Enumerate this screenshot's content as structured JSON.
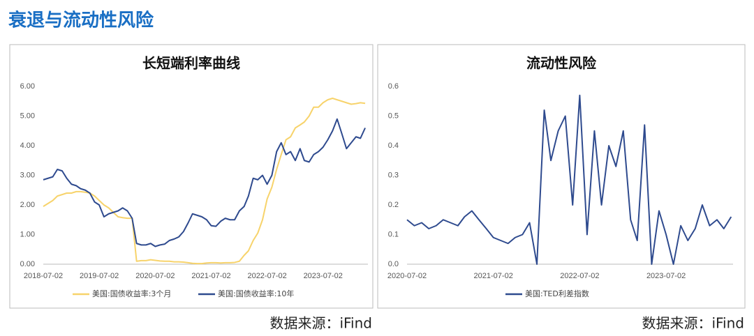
{
  "header": {
    "title": "衰退与流动性风险"
  },
  "notes": [
    "数据来源：iFind",
    "数据来源：iFind"
  ],
  "chart_data": [
    {
      "type": "line",
      "title": "长短端利率曲线",
      "x": [
        "2018-07-02",
        "2018-08-02",
        "2018-09-02",
        "2018-10-02",
        "2018-11-02",
        "2018-12-02",
        "2019-01-02",
        "2019-02-02",
        "2019-03-02",
        "2019-04-02",
        "2019-05-02",
        "2019-06-02",
        "2019-07-02",
        "2019-08-02",
        "2019-09-02",
        "2019-10-02",
        "2019-11-02",
        "2019-12-02",
        "2020-01-02",
        "2020-02-02",
        "2020-03-02",
        "2020-04-02",
        "2020-05-02",
        "2020-06-02",
        "2020-07-02",
        "2020-08-02",
        "2020-09-02",
        "2020-10-02",
        "2020-11-02",
        "2020-12-02",
        "2021-01-02",
        "2021-02-02",
        "2021-03-02",
        "2021-04-02",
        "2021-05-02",
        "2021-06-02",
        "2021-07-02",
        "2021-08-02",
        "2021-09-02",
        "2021-10-02",
        "2021-11-02",
        "2021-12-02",
        "2022-01-02",
        "2022-02-02",
        "2022-03-02",
        "2022-04-02",
        "2022-05-02",
        "2022-06-02",
        "2022-07-02",
        "2022-08-02",
        "2022-09-02",
        "2022-10-02",
        "2022-11-02",
        "2022-12-02",
        "2023-01-02",
        "2023-02-02",
        "2023-03-02",
        "2023-04-02",
        "2023-05-02",
        "2023-06-02",
        "2023-07-02",
        "2023-08-02",
        "2023-09-02",
        "2023-10-02",
        "2023-11-02",
        "2023-12-02",
        "2024-01-02",
        "2024-02-02",
        "2024-03-02",
        "2024-04-02"
      ],
      "series": [
        {
          "name": "美国:国债收益率:3个月",
          "color": "#f7d36b",
          "values": [
            1.95,
            2.05,
            2.15,
            2.3,
            2.35,
            2.4,
            2.4,
            2.45,
            2.45,
            2.43,
            2.4,
            2.3,
            2.15,
            2.0,
            1.9,
            1.75,
            1.6,
            1.57,
            1.55,
            1.55,
            0.1,
            0.12,
            0.12,
            0.15,
            0.13,
            0.11,
            0.1,
            0.1,
            0.08,
            0.08,
            0.07,
            0.05,
            0.03,
            0.02,
            0.02,
            0.04,
            0.05,
            0.05,
            0.04,
            0.05,
            0.05,
            0.06,
            0.1,
            0.3,
            0.45,
            0.8,
            1.05,
            1.5,
            2.2,
            2.6,
            3.2,
            3.7,
            4.2,
            4.3,
            4.6,
            4.7,
            4.8,
            5.0,
            5.3,
            5.3,
            5.45,
            5.55,
            5.6,
            5.55,
            5.5,
            5.45,
            5.4,
            5.42,
            5.45,
            5.43
          ]
        },
        {
          "name": "美国:国债收益率:10年",
          "color": "#2e4a8e",
          "values": [
            2.85,
            2.9,
            2.95,
            3.2,
            3.15,
            2.9,
            2.7,
            2.65,
            2.55,
            2.5,
            2.4,
            2.1,
            2.0,
            1.6,
            1.7,
            1.75,
            1.8,
            1.9,
            1.8,
            1.55,
            0.7,
            0.65,
            0.65,
            0.7,
            0.6,
            0.65,
            0.68,
            0.8,
            0.85,
            0.92,
            1.1,
            1.4,
            1.7,
            1.65,
            1.6,
            1.5,
            1.3,
            1.28,
            1.45,
            1.55,
            1.5,
            1.5,
            1.8,
            1.95,
            2.3,
            2.9,
            2.85,
            3.0,
            2.7,
            3.0,
            3.8,
            4.1,
            3.7,
            3.8,
            3.5,
            3.9,
            3.5,
            3.45,
            3.7,
            3.8,
            3.95,
            4.2,
            4.5,
            4.9,
            4.4,
            3.9,
            4.1,
            4.3,
            4.25,
            4.6
          ]
        }
      ],
      "xlim": [
        "2018-07-02",
        "2024-04-20"
      ],
      "xticks": [
        "2018-07-02",
        "2019-07-02",
        "2020-07-02",
        "2021-07-02",
        "2022-07-02",
        "2023-07-02"
      ],
      "ylim": [
        0,
        6
      ],
      "yticks": [
        {
          "value": 0,
          "label": "0.00"
        },
        {
          "value": 1,
          "label": "1.00"
        },
        {
          "value": 2,
          "label": "2.00"
        },
        {
          "value": 3,
          "label": "3.00"
        },
        {
          "value": 4,
          "label": "4.00"
        },
        {
          "value": 5,
          "label": "5.00"
        },
        {
          "value": 6,
          "label": "6.00"
        }
      ],
      "grid": false,
      "legend": "bottom"
    },
    {
      "type": "line",
      "title": "流动性风险",
      "x": [
        "2020-07-02",
        "2020-08-02",
        "2020-09-02",
        "2020-10-02",
        "2020-11-02",
        "2020-12-02",
        "2021-01-02",
        "2021-02-02",
        "2021-03-02",
        "2021-04-02",
        "2021-05-02",
        "2021-06-02",
        "2021-07-02",
        "2021-08-02",
        "2021-09-02",
        "2021-10-02",
        "2021-11-02",
        "2021-12-02",
        "2022-01-02",
        "2022-02-02",
        "2022-03-02",
        "2022-04-02",
        "2022-05-02",
        "2022-06-02",
        "2022-07-02",
        "2022-08-02",
        "2022-09-02",
        "2022-10-02",
        "2022-11-02",
        "2022-12-02",
        "2023-01-02",
        "2023-02-02",
        "2023-03-02",
        "2023-04-02",
        "2023-05-02",
        "2023-06-02",
        "2023-07-02",
        "2023-08-02",
        "2023-09-02",
        "2023-10-02",
        "2023-11-02",
        "2023-12-02",
        "2024-01-02",
        "2024-02-02",
        "2024-03-02",
        "2024-04-02"
      ],
      "series": [
        {
          "name": "美国:TED利差指数",
          "color": "#2e4a8e",
          "values": [
            0.15,
            0.13,
            0.14,
            0.12,
            0.13,
            0.15,
            0.14,
            0.13,
            0.16,
            0.18,
            0.15,
            0.12,
            0.09,
            0.08,
            0.07,
            0.09,
            0.1,
            0.14,
            0.0,
            0.52,
            0.35,
            0.45,
            0.5,
            0.2,
            0.57,
            0.1,
            0.45,
            0.2,
            0.4,
            0.33,
            0.45,
            0.15,
            0.08,
            0.47,
            0.0,
            0.18,
            0.1,
            0.0,
            0.13,
            0.08,
            0.12,
            0.2,
            0.13,
            0.15,
            0.12,
            0.16
          ]
        }
      ],
      "xlim": [
        "2020-07-02",
        "2024-04-10"
      ],
      "xticks": [
        "2020-07-02",
        "2021-07-02",
        "2022-07-02",
        "2023-07-02"
      ],
      "ylim": [
        0,
        0.6
      ],
      "yticks": [
        {
          "value": 0,
          "label": "0.0"
        },
        0.1,
        0.2,
        0.3,
        0.4,
        0.5,
        0.6
      ],
      "grid": false,
      "legend": "bottom"
    }
  ]
}
